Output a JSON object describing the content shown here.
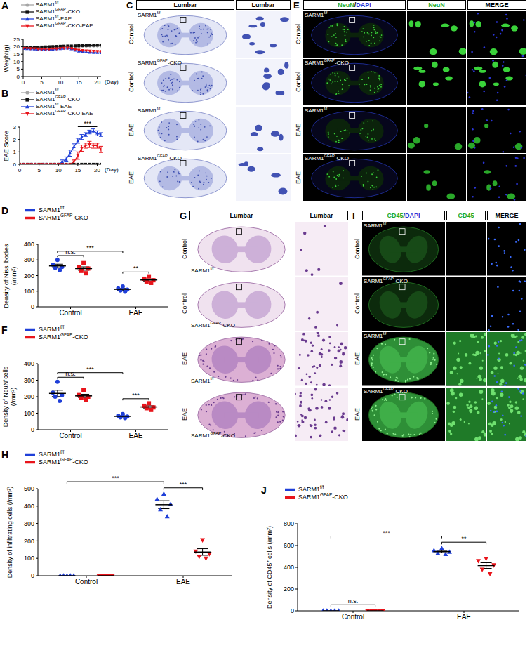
{
  "chart_data": [
    {
      "panel": "A",
      "type": "line",
      "y_label": "Weight(g)",
      "x_label": "(Day)",
      "legend": "top",
      "x": [
        0,
        1,
        2,
        3,
        4,
        5,
        6,
        7,
        8,
        9,
        10,
        11,
        12,
        13,
        14,
        15,
        16,
        17,
        18,
        19,
        20,
        21
      ],
      "xlim": [
        0,
        21
      ],
      "xticks": [
        0,
        5,
        10,
        15,
        20
      ],
      "ylim": [
        0,
        25
      ],
      "yticks": [
        0,
        5,
        10,
        15,
        20,
        25
      ],
      "series": [
        {
          "name": "SARM1f/f",
          "color": "#a6a6a6",
          "marker": "circle",
          "values": [
            19.0,
            19.1,
            19.2,
            19.3,
            19.4,
            19.5,
            19.6,
            19.7,
            19.8,
            19.9,
            20.0,
            20.0,
            20.1,
            20.1,
            20.2,
            20.2,
            20.3,
            20.3,
            20.4,
            20.4,
            20.5,
            20.5
          ]
        },
        {
          "name": "SARM1GFAP-CKO",
          "color": "#111111",
          "marker": "square",
          "values": [
            19.2,
            19.4,
            19.5,
            19.6,
            19.7,
            19.8,
            19.9,
            20.0,
            20.1,
            20.2,
            20.3,
            20.4,
            20.5,
            20.5,
            20.6,
            20.7,
            20.8,
            20.9,
            21.0,
            21.0,
            21.1,
            21.2
          ]
        },
        {
          "name": "SARM1f/f-EAE",
          "color": "#1f3fd8",
          "marker": "triangle",
          "values": [
            18.8,
            18.6,
            18.5,
            18.4,
            18.3,
            18.2,
            18.2,
            18.1,
            18.3,
            18.5,
            18.7,
            18.9,
            19.0,
            18.5,
            17.6,
            17.0,
            16.6,
            16.4,
            16.2,
            16.1,
            16.0,
            15.9
          ]
        },
        {
          "name": "SARM1GFAP-CKO-EAE",
          "color": "#e8141b",
          "marker": "triangle-down",
          "values": [
            19.0,
            18.9,
            18.8,
            18.7,
            18.6,
            18.5,
            18.5,
            18.4,
            18.6,
            18.7,
            18.9,
            19.1,
            19.2,
            18.9,
            18.3,
            17.8,
            17.5,
            17.3,
            17.2,
            17.1,
            17.0,
            17.0
          ]
        }
      ]
    },
    {
      "panel": "B",
      "type": "line",
      "y_label": "EAE Score",
      "x_label": "(Day)",
      "legend": "top",
      "x": [
        0,
        1,
        2,
        3,
        4,
        5,
        6,
        7,
        8,
        9,
        10,
        11,
        12,
        13,
        14,
        15,
        16,
        17,
        18,
        19,
        20,
        21
      ],
      "xlim": [
        0,
        21
      ],
      "xticks": [
        0,
        5,
        10,
        15,
        20
      ],
      "ylim": [
        0,
        3
      ],
      "yticks": [
        0,
        1,
        2,
        3
      ],
      "annotations": [
        {
          "text": "***",
          "x_from": 15,
          "x_to": 20
        }
      ],
      "series": [
        {
          "name": "SARM1f/f",
          "color": "#a6a6a6",
          "marker": "circle",
          "values": [
            0,
            0,
            0,
            0,
            0,
            0,
            0,
            0,
            0,
            0,
            0,
            0,
            0,
            0,
            0,
            0,
            0,
            0,
            0,
            0,
            0,
            0
          ]
        },
        {
          "name": "SARM1GFAP-CKO",
          "color": "#111111",
          "marker": "square",
          "values": [
            0,
            0,
            0,
            0,
            0,
            0,
            0,
            0,
            0,
            0,
            0,
            0,
            0,
            0,
            0,
            0,
            0,
            0,
            0,
            0,
            0,
            0
          ]
        },
        {
          "name": "SARM1f/f-EAE",
          "color": "#1f3fd8",
          "marker": "triangle",
          "values": [
            0,
            0,
            0,
            0,
            0,
            0,
            0,
            0,
            0,
            0,
            0,
            0.2,
            0.4,
            0.9,
            1.4,
            1.9,
            2.2,
            2.4,
            2.6,
            2.7,
            2.5,
            2.4
          ],
          "error": [
            0,
            0,
            0,
            0,
            0,
            0,
            0,
            0,
            0,
            0,
            0,
            0.15,
            0.2,
            0.25,
            0.25,
            0.2,
            0.2,
            0.15,
            0.15,
            0.15,
            0.2,
            0.15
          ]
        },
        {
          "name": "SARM1GFAP-CKO-EAE",
          "color": "#e8141b",
          "marker": "triangle-down",
          "values": [
            0,
            0,
            0,
            0,
            0,
            0,
            0,
            0,
            0,
            0,
            0,
            0,
            0,
            0,
            0.2,
            0.7,
            1.3,
            1.5,
            1.6,
            1.5,
            1.5,
            1.2
          ],
          "error": [
            0,
            0,
            0,
            0,
            0,
            0,
            0,
            0,
            0,
            0,
            0,
            0,
            0,
            0,
            0.15,
            0.3,
            0.25,
            0.2,
            0.25,
            0.2,
            0.2,
            0.25
          ]
        }
      ]
    },
    {
      "panel": "D",
      "type": "dot",
      "y_label": "Density of Nissl bodies (/mm²)",
      "legend": "top",
      "categories": [
        "Control",
        "EAE"
      ],
      "ylim": [
        0,
        400
      ],
      "yticks": [
        0,
        100,
        200,
        300,
        400
      ],
      "series": [
        {
          "name": "SARM1f/f",
          "color": "#1f3fd8",
          "marker": "circle",
          "values": [
            [
              300,
              270,
              255,
              250,
              235
            ],
            [
              130,
              118,
              110,
              105,
              97
            ]
          ],
          "mean": [
            262,
            112
          ],
          "error": [
            11,
            6
          ]
        },
        {
          "name": "SARM1GFAP-CKO",
          "color": "#e8141b",
          "marker": "square",
          "values": [
            [
              280,
              255,
              245,
              230,
              215
            ],
            [
              195,
              180,
              170,
              162,
              153
            ]
          ],
          "mean": [
            245,
            172
          ],
          "error": [
            11,
            7
          ]
        }
      ],
      "comparisons": [
        {
          "label": "n.s.",
          "a": [
            0,
            0
          ],
          "b": [
            1,
            0
          ]
        },
        {
          "label": "***",
          "a": [
            0,
            0
          ],
          "b": [
            0,
            1
          ]
        },
        {
          "label": "**",
          "a": [
            0,
            1
          ],
          "b": [
            1,
            1
          ]
        }
      ]
    },
    {
      "panel": "F",
      "type": "dot",
      "y_label": "Density of NeuN⁺cells (/mm²)",
      "legend": "top",
      "categories": [
        "Control",
        "EAE"
      ],
      "ylim": [
        0,
        400
      ],
      "yticks": [
        0,
        100,
        200,
        300,
        400
      ],
      "series": [
        {
          "name": "SARM1f/f",
          "color": "#1f3fd8",
          "marker": "circle",
          "values": [
            [
              290,
              225,
              210,
              200,
              175
            ],
            [
              95,
              85,
              80,
              75,
              70
            ]
          ],
          "mean": [
            220,
            81
          ],
          "error": [
            19,
            4
          ]
        },
        {
          "name": "SARM1GFAP-CKO",
          "color": "#e8141b",
          "marker": "square",
          "values": [
            [
              240,
              210,
              200,
              195,
              180
            ],
            [
              160,
              145,
              135,
              130,
              120
            ]
          ],
          "mean": [
            205,
            138
          ],
          "error": [
            10,
            7
          ]
        }
      ],
      "comparisons": [
        {
          "label": "n.s.",
          "a": [
            0,
            0
          ],
          "b": [
            1,
            0
          ]
        },
        {
          "label": "***",
          "a": [
            0,
            0
          ],
          "b": [
            0,
            1
          ]
        },
        {
          "label": "***",
          "a": [
            0,
            1
          ],
          "b": [
            1,
            1
          ]
        }
      ]
    },
    {
      "panel": "H",
      "type": "dot",
      "y_label": "Density of infiltrating cells (/mm²)",
      "legend": "top",
      "categories": [
        "Control",
        "EAE"
      ],
      "ylim": [
        0,
        500
      ],
      "yticks": [
        0,
        100,
        200,
        300,
        400,
        500
      ],
      "series": [
        {
          "name": "SARM1f/f",
          "color": "#1f3fd8",
          "marker": "triangle",
          "values": [
            [
              0,
              0,
              0,
              0,
              0
            ],
            [
              470,
              440,
              410,
              380,
              340
            ]
          ],
          "mean": [
            0,
            408
          ],
          "error": [
            0,
            23
          ]
        },
        {
          "name": "SARM1GFAP-CKO",
          "color": "#e8141b",
          "marker": "triangle-down",
          "values": [
            [
              0,
              0,
              0,
              0,
              0
            ],
            [
              205,
              140,
              125,
              110,
              100
            ]
          ],
          "mean": [
            0,
            136
          ],
          "error": [
            0,
            19
          ]
        }
      ],
      "comparisons": [
        {
          "label": "***",
          "a": [
            0,
            0
          ],
          "b": [
            0,
            1
          ]
        },
        {
          "label": "***",
          "a": [
            0,
            1
          ],
          "b": [
            1,
            1
          ]
        }
      ]
    },
    {
      "panel": "J",
      "type": "dot",
      "y_label": "Density of CD45⁺ cells (/mm²)",
      "legend": "top",
      "categories": [
        "Control",
        "EAE"
      ],
      "ylim": [
        0,
        800
      ],
      "yticks": [
        0,
        200,
        400,
        600,
        800
      ],
      "series": [
        {
          "name": "SARM1f/f",
          "color": "#1f3fd8",
          "marker": "triangle",
          "values": [
            [
              0,
              0,
              0,
              0,
              0
            ],
            [
              575,
              555,
              540,
              530,
              520
            ]
          ],
          "mean": [
            0,
            544
          ],
          "error": [
            0,
            10
          ]
        },
        {
          "name": "SARM1GFAP-CKO",
          "color": "#e8141b",
          "marker": "triangle-down",
          "values": [
            [
              0,
              0,
              0,
              0,
              0
            ],
            [
              480,
              460,
              420,
              380,
              340
            ]
          ],
          "mean": [
            0,
            416
          ],
          "error": [
            0,
            26
          ]
        }
      ],
      "comparisons": [
        {
          "label": "n.s.",
          "a": [
            0,
            0
          ],
          "b": [
            1,
            0
          ]
        },
        {
          "label": "***",
          "a": [
            0,
            0
          ],
          "b": [
            0,
            1
          ]
        },
        {
          "label": "**",
          "a": [
            0,
            1
          ],
          "b": [
            1,
            1
          ]
        }
      ]
    }
  ],
  "image_panels": [
    {
      "panel": "C",
      "headers": [
        "Lumbar",
        "Lumbar"
      ],
      "rows": [
        {
          "condition": "Control",
          "genotype": "SARM1f/f"
        },
        {
          "condition": "Control",
          "genotype": "SARM1GFAP-CKO"
        },
        {
          "condition": "EAE",
          "genotype": "SARM1f/f"
        },
        {
          "condition": "EAE",
          "genotype": "SARM1GFAP-CKO"
        }
      ]
    },
    {
      "panel": "E",
      "headers": [
        "NeuN/DAPI",
        "NeuN",
        "MERGE"
      ],
      "rows": [
        {
          "condition": "Control",
          "genotype": "SARM1f/f"
        },
        {
          "condition": "Control",
          "genotype": "SARM1GFAP-CKO"
        },
        {
          "condition": "EAE",
          "genotype": "SARM1f/f"
        },
        {
          "condition": "EAE",
          "genotype": "SARM1GFAP-CKO"
        }
      ]
    },
    {
      "panel": "G",
      "headers": [
        "Lumbar",
        "Lumbar"
      ],
      "rows": [
        {
          "condition": "Control",
          "genotype": "SARM1f/f"
        },
        {
          "condition": "Control",
          "genotype": "SARM1GFAP-CKO"
        },
        {
          "condition": "EAE",
          "genotype": "SARM1f/f"
        },
        {
          "condition": "EAE",
          "genotype": "SARM1GFAP-CKO"
        }
      ]
    },
    {
      "panel": "I",
      "headers": [
        "CD45/DAPI",
        "CD45",
        "MERGE"
      ],
      "rows": [
        {
          "condition": "Control",
          "genotype": "SARM1f/f"
        },
        {
          "condition": "Control",
          "genotype": "SARM1GFAP-CKO"
        },
        {
          "condition": "EAE",
          "genotype": "SARM1f/f"
        },
        {
          "condition": "EAE",
          "genotype": "SARM1GFAP-CKO"
        }
      ]
    }
  ]
}
